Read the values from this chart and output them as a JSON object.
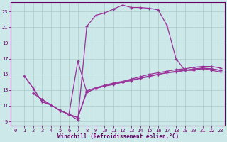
{
  "xlabel": "Windchill (Refroidissement éolien,°C)",
  "bg_color": "#cce8e8",
  "grid_color": "#aacccc",
  "line_color": "#993399",
  "xlim": [
    -0.5,
    23.5
  ],
  "ylim": [
    8.5,
    24.2
  ],
  "xticks": [
    0,
    1,
    2,
    3,
    4,
    5,
    6,
    7,
    8,
    9,
    10,
    11,
    12,
    13,
    14,
    15,
    16,
    17,
    18,
    19,
    20,
    21,
    22,
    23
  ],
  "yticks": [
    9,
    11,
    13,
    15,
    17,
    19,
    21,
    23
  ],
  "line1_x": [
    1,
    2,
    3,
    4,
    5,
    6,
    7,
    8,
    9,
    10,
    11,
    12,
    13,
    14,
    15,
    16,
    17,
    18,
    19,
    20,
    21,
    22,
    23
  ],
  "line1_y": [
    14.8,
    13.2,
    11.5,
    11.1,
    10.4,
    9.9,
    9.2,
    21.1,
    22.5,
    22.8,
    23.3,
    23.8,
    23.5,
    23.5,
    23.4,
    23.2,
    21.2,
    17.0,
    15.5,
    15.5,
    15.8,
    15.5,
    15.3
  ],
  "line2_x": [
    1,
    2,
    3,
    4,
    5,
    6,
    7,
    8,
    9,
    10,
    11,
    12,
    13,
    14,
    15,
    16,
    17,
    18,
    19,
    20,
    21,
    22,
    23
  ],
  "line2_y": [
    14.8,
    13.2,
    11.5,
    11.1,
    10.4,
    9.9,
    16.7,
    12.7,
    13.2,
    13.5,
    13.8,
    14.0,
    14.3,
    14.5,
    14.8,
    15.0,
    15.2,
    15.4,
    15.5,
    15.7,
    15.8,
    15.7,
    15.5
  ],
  "line3_x": [
    2,
    3,
    4,
    5,
    6,
    7,
    8,
    9,
    10,
    11,
    12,
    13,
    14,
    15,
    16,
    17,
    18,
    19,
    20,
    21,
    22,
    23
  ],
  "line3_y": [
    12.6,
    11.8,
    11.1,
    10.4,
    9.9,
    9.5,
    12.7,
    13.2,
    13.5,
    13.7,
    14.0,
    14.2,
    14.5,
    14.7,
    15.0,
    15.2,
    15.3,
    15.5,
    15.6,
    15.7,
    15.7,
    15.5
  ],
  "line4_x": [
    2,
    3,
    4,
    5,
    6,
    7,
    8,
    9,
    10,
    11,
    12,
    13,
    14,
    15,
    16,
    17,
    18,
    19,
    20,
    21,
    22,
    23
  ],
  "line4_y": [
    12.6,
    11.8,
    11.1,
    10.4,
    9.9,
    9.5,
    12.9,
    13.3,
    13.6,
    13.9,
    14.1,
    14.4,
    14.7,
    15.0,
    15.2,
    15.4,
    15.6,
    15.7,
    15.9,
    16.0,
    16.0,
    15.8
  ]
}
